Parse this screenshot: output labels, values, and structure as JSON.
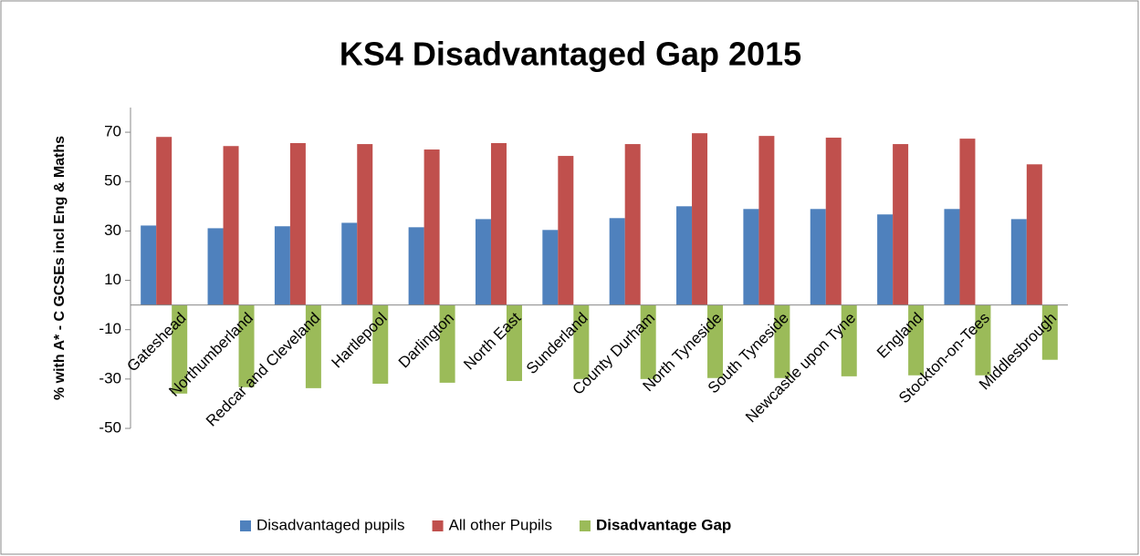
{
  "chart_data": {
    "type": "bar",
    "title": "KS4 Disadvantaged Gap 2015",
    "y_label": "% with A* - C GCSEs incl Eng & Maths",
    "categories": [
      "Gateshead",
      "Northumberland",
      "Redcar and Cleveland",
      "Hartlepool",
      "Darlington",
      "North East",
      "Sunderland",
      "County Durham",
      "North Tyneside",
      "South Tyneside",
      "Newcastle upon Tyne",
      "England",
      "Stockton-on-Tees",
      "Middlesbrough"
    ],
    "series": [
      {
        "name": "Disadvantaged pupils",
        "color": "#4f81bd",
        "values": [
          32.2,
          31.1,
          31.9,
          33.3,
          31.5,
          34.8,
          30.4,
          35.2,
          40.0,
          38.9,
          38.9,
          36.7,
          38.9,
          34.8
        ]
      },
      {
        "name": "All other Pupils",
        "color": "#c0504d",
        "values": [
          68.1,
          64.4,
          65.6,
          65.2,
          63.0,
          65.6,
          60.4,
          65.2,
          69.6,
          68.5,
          67.8,
          65.2,
          67.4,
          57.0
        ]
      },
      {
        "name": "Disadvantage Gap",
        "color": "#9bbb59",
        "values": [
          -35.9,
          -33.3,
          -33.7,
          -31.9,
          -31.5,
          -30.8,
          -30.0,
          -30.0,
          -29.6,
          -29.6,
          -28.9,
          -28.5,
          -28.5,
          -22.2
        ]
      }
    ],
    "ylim": [
      -50,
      80
    ],
    "yticks": [
      -50,
      -30,
      -10,
      10,
      30,
      50,
      70
    ],
    "grid": false,
    "legend": "bottom"
  }
}
